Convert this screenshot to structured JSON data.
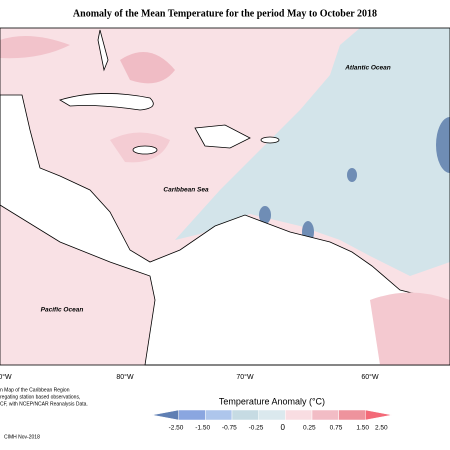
{
  "header": {
    "title": "Anomaly of the Mean Temperature for the period May to October 2018"
  },
  "map": {
    "labels": [
      "Atlantic Ocean",
      "Caribbean Sea",
      "Pacific Ocean"
    ],
    "longitude_labels": [
      "0°W",
      "80°W",
      "70°W",
      "60°W"
    ]
  },
  "legend": {
    "title": "Temperature Anomaly (°C)",
    "colors": [
      "#5f7fb3",
      "#8aa6e0",
      "#aec6ec",
      "#c6dbe3",
      "#dbe9ee",
      "#f9dde2",
      "#f2bcc5",
      "#ee939d",
      "#f36a78"
    ],
    "labels": [
      "-2.50",
      "-1.50",
      "-0.75",
      "-0.25",
      "0",
      "0.25",
      "0.75",
      "1.50",
      "2.50"
    ]
  },
  "footnote": {
    "lines": [
      "n Map of the Caribbean Region",
      "regating station based observations,",
      "CF, with NCEP/NCAR Reanalysis Data."
    ],
    "credit": "CIMH Nov-2018"
  }
}
